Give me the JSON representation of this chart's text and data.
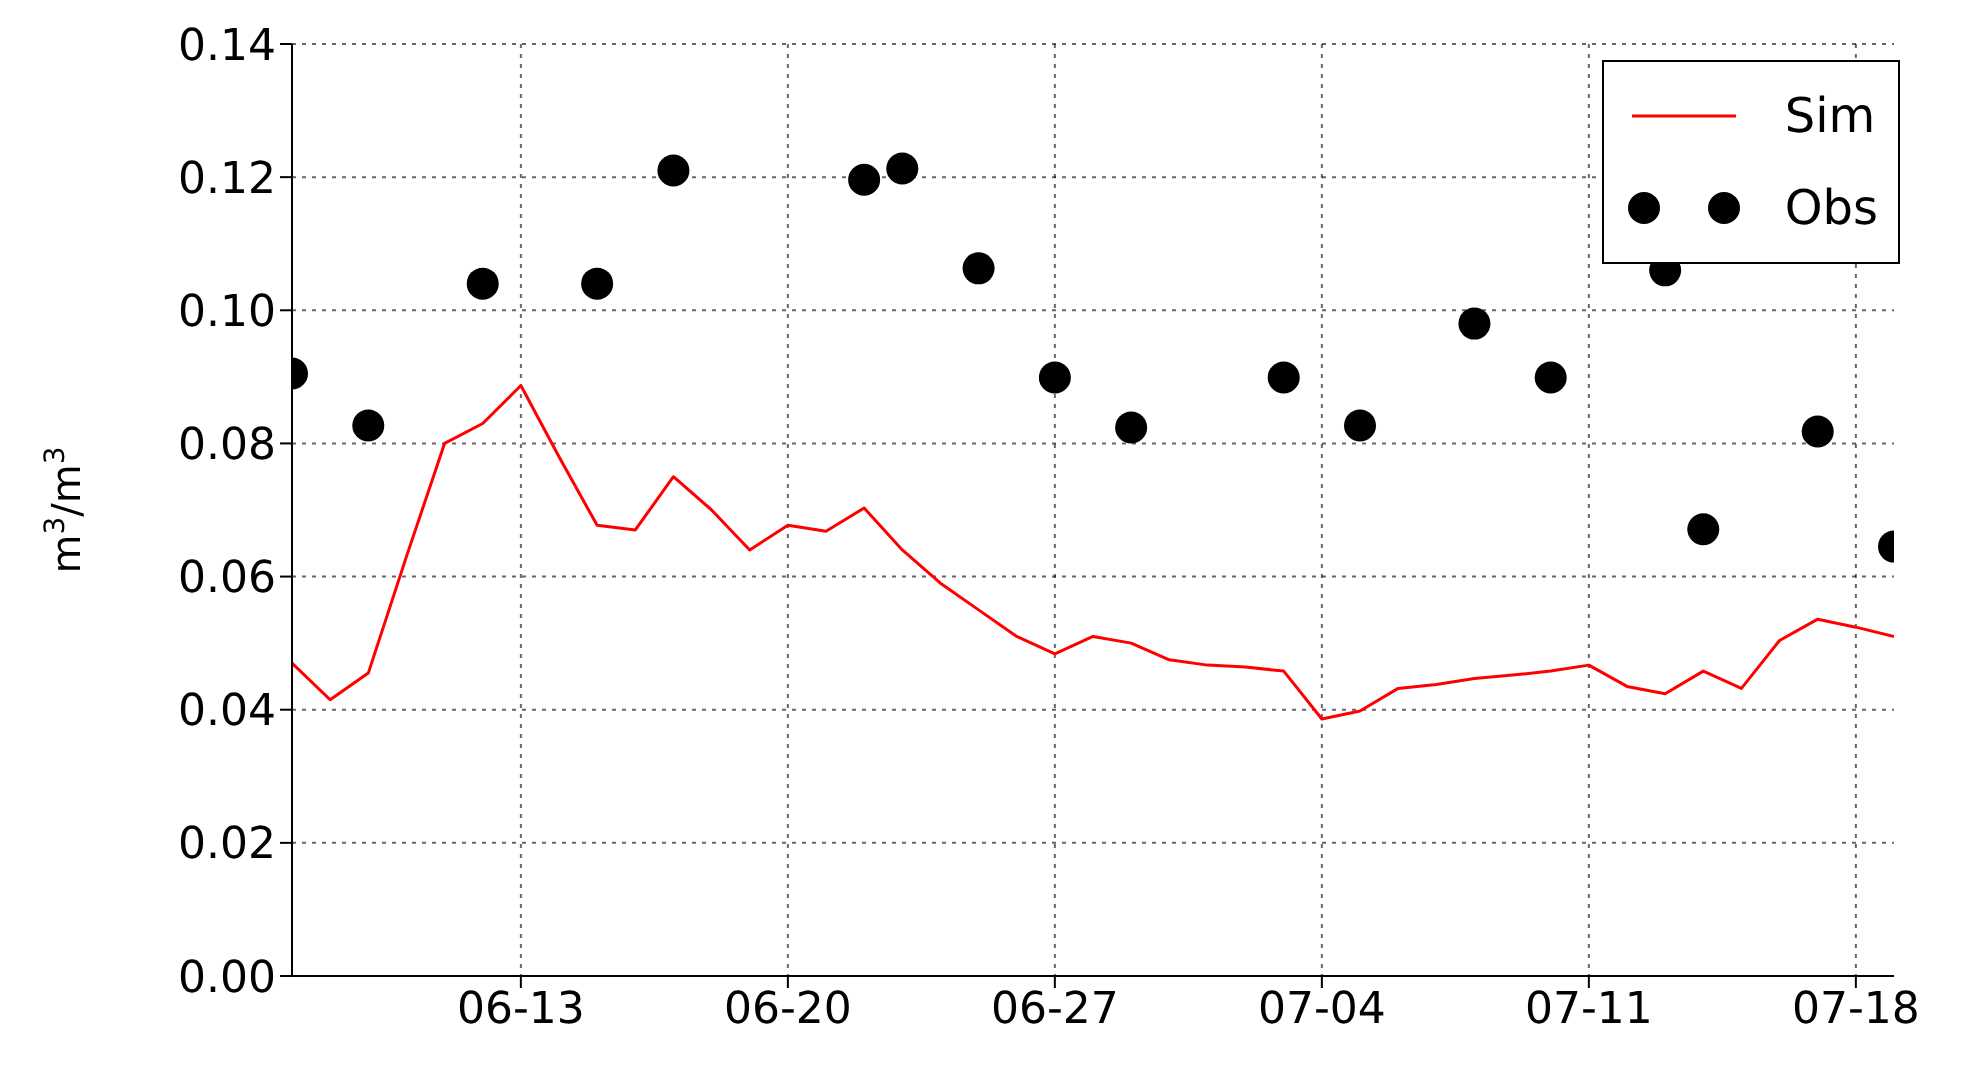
{
  "chart_data": {
    "type": "line",
    "ylabel": "m$^{3}$/m$^{3}$",
    "xlim": [
      "--06-07",
      "--07-19"
    ],
    "xticks": [
      {
        "value": "--06-13",
        "label": "06-13"
      },
      {
        "value": "--06-20",
        "label": "06-20"
      },
      {
        "value": "--06-27",
        "label": "06-27"
      },
      {
        "value": "--07-04",
        "label": "07-04"
      },
      {
        "value": "--07-11",
        "label": "07-11"
      },
      {
        "value": "--07-18",
        "label": "07-18"
      }
    ],
    "ylim": [
      0,
      0.14
    ],
    "yticks": [
      {
        "value": 0,
        "label": "0.00"
      },
      {
        "value": 0.02,
        "label": "0.02"
      },
      {
        "value": 0.04,
        "label": "0.04"
      },
      {
        "value": 0.06,
        "label": "0.06"
      },
      {
        "value": 0.08,
        "label": "0.08"
      },
      {
        "value": 0.1,
        "label": "0.10"
      },
      {
        "value": 0.12,
        "label": "0.12"
      },
      {
        "value": 0.14,
        "label": "0.14"
      }
    ],
    "grid": true,
    "legend": "top right",
    "series": [
      {
        "name": "Sim",
        "type": "line",
        "color": "#ff0000",
        "marker": "none",
        "line_style": "solid",
        "x": [
          "--06-07",
          "--06-08",
          "--06-09",
          "--06-10",
          "--06-11",
          "--06-12",
          "--06-13",
          "--06-14",
          "--06-15",
          "--06-16",
          "--06-17",
          "--06-18",
          "--06-19",
          "--06-20",
          "--06-21",
          "--06-22",
          "--06-23",
          "--06-24",
          "--06-25",
          "--06-26",
          "--06-27",
          "--06-28",
          "--06-29",
          "--06-30",
          "--07-01",
          "--07-02",
          "--07-03",
          "--07-04",
          "--07-05",
          "--07-06",
          "--07-07",
          "--07-08",
          "--07-09",
          "--07-10",
          "--07-11",
          "--07-12",
          "--07-13",
          "--07-14",
          "--07-15",
          "--07-16",
          "--07-17",
          "--07-18",
          "--07-19"
        ],
        "values": [
          0.047,
          0.0415,
          0.0455,
          0.063,
          0.08,
          0.083,
          0.0887,
          0.078,
          0.0677,
          0.067,
          0.075,
          0.07,
          0.064,
          0.0677,
          0.0668,
          0.0703,
          0.064,
          0.059,
          0.055,
          0.051,
          0.0484,
          0.051,
          0.05,
          0.0475,
          0.0467,
          0.0464,
          0.0458,
          0.0386,
          0.0398,
          0.0432,
          0.0438,
          0.0447,
          0.0452,
          0.0458,
          0.0467,
          0.0435,
          0.0424,
          0.0458,
          0.0432,
          0.0504,
          0.0536,
          0.0524,
          0.051
        ]
      },
      {
        "name": "Obs",
        "type": "scatter",
        "color": "#000000",
        "marker": "circle",
        "x": [
          "--06-07",
          "--06-09",
          "--06-12",
          "--06-15",
          "--06-17",
          "--06-22",
          "--06-23",
          "--06-25",
          "--06-27",
          "--06-29",
          "--07-03",
          "--07-05",
          "--07-08",
          "--07-10",
          "--07-13",
          "--07-14",
          "--07-17",
          "--07-19"
        ],
        "values": [
          0.0905,
          0.0827,
          0.104,
          0.104,
          0.121,
          0.1196,
          0.1213,
          0.1063,
          0.0899,
          0.0824,
          0.0899,
          0.0827,
          0.098,
          0.0899,
          0.106,
          0.0671,
          0.0818,
          0.0645
        ]
      }
    ]
  }
}
